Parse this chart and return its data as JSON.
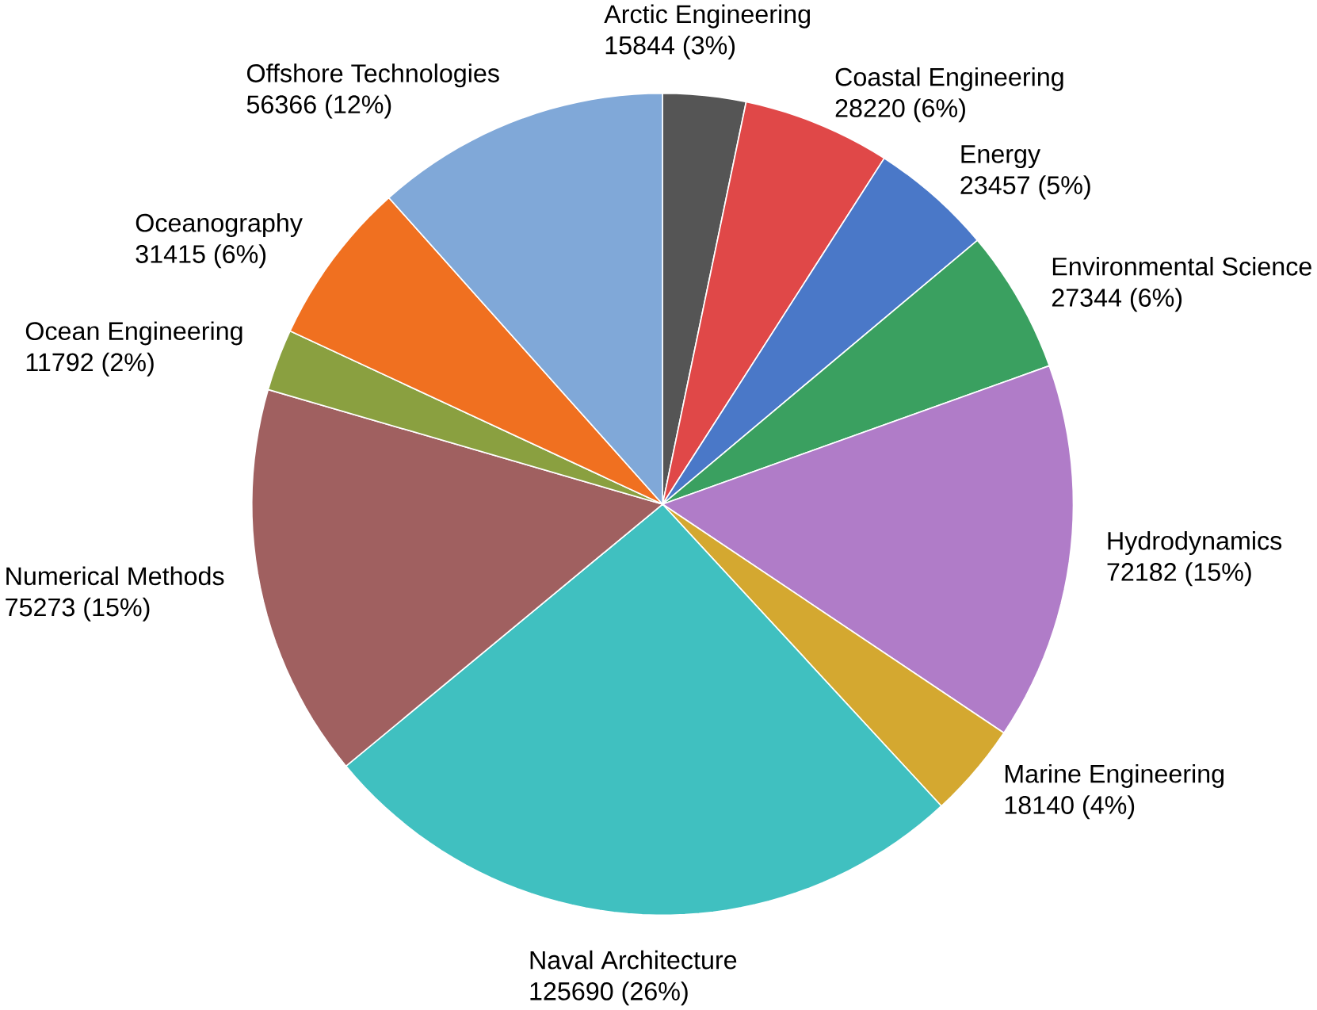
{
  "chart_data": {
    "type": "pie",
    "categories": [
      "Arctic Engineering",
      "Coastal Engineering",
      "Energy",
      "Environmental Science",
      "Hydrodynamics",
      "Marine Engineering",
      "Naval Architecture",
      "Numerical Methods",
      "Ocean Engineering",
      "Oceanography",
      "Offshore Technologies"
    ],
    "values": [
      15844,
      28220,
      23457,
      27344,
      72182,
      18140,
      125690,
      75273,
      11792,
      31415,
      56366
    ],
    "value_labels": [
      "15844 (3%)",
      "28220 (6%)",
      "23457 (5%)",
      "27344 (6%)",
      "72182 (15%)",
      "18140 (4%)",
      "125690 (26%)",
      "75273 (15%)",
      "11792 (2%)",
      "31415 (6%)",
      "56366 (12%)"
    ],
    "colors": [
      "#555555",
      "#e04848",
      "#4a78c8",
      "#3aa060",
      "#b07cc8",
      "#d4a830",
      "#40c0c0",
      "#a06060",
      "#8aa040",
      "#f07020",
      "#80a8d8"
    ]
  }
}
